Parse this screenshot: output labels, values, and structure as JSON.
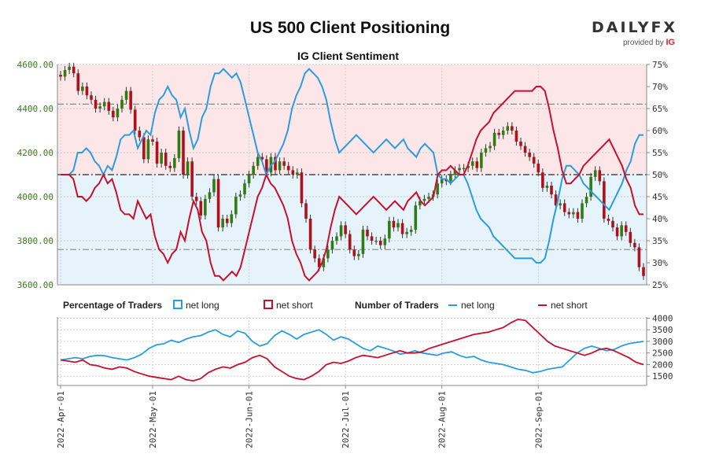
{
  "header": {
    "title": "US 500 Client Positioning",
    "subtitle": "IG Client Sentiment",
    "brand_name": "DAILYFX",
    "brand_sub": "provided by",
    "brand_ig": "IG"
  },
  "legend": {
    "pct_label": "Percentage of Traders",
    "num_label": "Number of Traders",
    "net_long": "net long",
    "net_short": "net short"
  },
  "colors": {
    "long": "#2a9de0",
    "short": "#c8102e",
    "bull": "#2e7d12",
    "bear": "#b0101a",
    "top_fill": "#fde6e8",
    "bottom_fill": "#e6f3fb"
  },
  "chart_data": [
    {
      "type": "candlestick",
      "title": "US 500 Client Positioning",
      "subtitle": "IG Client Sentiment",
      "y_left_ticks": [
        "4600.00",
        "4400.00",
        "4200.00",
        "4000.00",
        "3800.00",
        "3600.00"
      ],
      "y_left_lim": [
        3600,
        4600
      ],
      "y_right_ticks": [
        "75%",
        "70%",
        "65%",
        "60%",
        "55%",
        "50%",
        "45%",
        "40%",
        "35%",
        "30%",
        "25%"
      ],
      "y_right_lim": [
        25,
        75
      ],
      "reference_lines_price": [
        4420,
        4100,
        3760
      ],
      "closes": [
        4545,
        4575,
        4590,
        4560,
        4480,
        4500,
        4460,
        4440,
        4400,
        4410,
        4430,
        4390,
        4360,
        4400,
        4440,
        4480,
        4395,
        4300,
        4270,
        4170,
        4260,
        4250,
        4150,
        4200,
        4140,
        4130,
        4175,
        4300,
        4100,
        4160,
        4000,
        3980,
        3915,
        3990,
        4020,
        4080,
        3860,
        3900,
        3880,
        3920,
        4000,
        4010,
        4060,
        4100,
        4140,
        4180,
        4170,
        4110,
        4180,
        4120,
        4160,
        4140,
        4120,
        4100,
        4110,
        3970,
        3900,
        3760,
        3720,
        3680,
        3720,
        3760,
        3800,
        3820,
        3870,
        3830,
        3760,
        3730,
        3740,
        3850,
        3820,
        3800,
        3800,
        3780,
        3810,
        3890,
        3860,
        3880,
        3830,
        3840,
        3850,
        3960,
        3980,
        3990,
        4000,
        4010,
        4060,
        4080,
        4070,
        4100,
        4120,
        4130,
        4130,
        4140,
        4160,
        4130,
        4200,
        4220,
        4230,
        4290,
        4280,
        4300,
        4320,
        4300,
        4250,
        4230,
        4200,
        4180,
        4150,
        4110,
        4040,
        4050,
        4010,
        3960,
        3970,
        3930,
        3920,
        3930,
        3900,
        3970,
        4000,
        4090,
        4120,
        4070,
        3900,
        3890,
        3860,
        3820,
        3870,
        3840,
        3790,
        3770,
        3680,
        3640
      ],
      "net_long_pct_approx": [
        50,
        50,
        50,
        51,
        55,
        55,
        56,
        55,
        53,
        52,
        50,
        52,
        51,
        54,
        58,
        59,
        59,
        60,
        56,
        58,
        60,
        59,
        64,
        67,
        68,
        70,
        68,
        67,
        63,
        65,
        60,
        56,
        58,
        63,
        65,
        70,
        73,
        73,
        74,
        73,
        72,
        73,
        71,
        67,
        63,
        59,
        55,
        53,
        50,
        52,
        53,
        55,
        57,
        60,
        65,
        68,
        70,
        73,
        74,
        73,
        72,
        70,
        67,
        62,
        58,
        55,
        56,
        57,
        58,
        59,
        58,
        57,
        56,
        55,
        56,
        57,
        58,
        57,
        56,
        57,
        58,
        56,
        55,
        54,
        56,
        57,
        56,
        55,
        50,
        49,
        49,
        48,
        49,
        50,
        50,
        48,
        45,
        42,
        40,
        39,
        38,
        36,
        35,
        34,
        33,
        32,
        31,
        31,
        31,
        31,
        31,
        30,
        30,
        31,
        35,
        40,
        44,
        49,
        52,
        52,
        51,
        50,
        48,
        47,
        46,
        45,
        44,
        43,
        42,
        44,
        46,
        48,
        51,
        53,
        57,
        59,
        59
      ],
      "net_short_pct_approx": [
        50,
        50,
        50,
        49,
        45,
        45,
        44,
        45,
        47,
        48,
        50,
        48,
        49,
        46,
        42,
        41,
        41,
        40,
        44,
        42,
        40,
        41,
        36,
        33,
        32,
        30,
        32,
        33,
        37,
        35,
        40,
        44,
        42,
        37,
        35,
        30,
        27,
        27,
        26,
        27,
        28,
        27,
        29,
        33,
        37,
        41,
        45,
        47,
        50,
        48,
        47,
        45,
        43,
        40,
        35,
        32,
        30,
        27,
        26,
        27,
        28,
        30,
        33,
        38,
        42,
        45,
        44,
        43,
        42,
        41,
        42,
        43,
        44,
        45,
        44,
        43,
        42,
        43,
        44,
        43,
        42,
        44,
        45,
        46,
        44,
        43,
        44,
        45,
        50,
        51,
        51,
        52,
        51,
        50,
        50,
        52,
        55,
        58,
        60,
        61,
        62,
        64,
        65,
        66,
        67,
        68,
        69,
        69,
        69,
        69,
        69,
        70,
        70,
        69,
        65,
        60,
        56,
        51,
        48,
        48,
        49,
        50,
        52,
        53,
        54,
        55,
        56,
        57,
        58,
        56,
        54,
        52,
        49,
        47,
        43,
        41,
        41
      ]
    },
    {
      "type": "line",
      "title": "Number of Traders",
      "y_right_ticks": [
        "4000",
        "3500",
        "3000",
        "2500",
        "2000",
        "1500"
      ],
      "ylim": [
        1100,
        4050
      ],
      "x_tick_labels": [
        "2022-Apr-01",
        "2022-May-01",
        "2022-Jun-01",
        "2022-Jul-01",
        "2022-Aug-01",
        "2022-Sep-01"
      ],
      "series": [
        {
          "name": "net long",
          "values_approx": [
            2200,
            2250,
            2300,
            2250,
            2350,
            2400,
            2380,
            2300,
            2250,
            2200,
            2300,
            2450,
            2700,
            2850,
            2900,
            3050,
            2950,
            3100,
            3200,
            3250,
            3400,
            3500,
            3300,
            3200,
            3450,
            3350,
            3000,
            2800,
            2900,
            3250,
            3450,
            3300,
            3100,
            3300,
            3400,
            3500,
            3300,
            3050,
            3200,
            3100,
            2900,
            2700,
            2600,
            2800,
            2700,
            2600,
            2450,
            2500,
            2600,
            2500,
            2450,
            2400,
            2500,
            2550,
            2400,
            2300,
            2350,
            2200,
            2100,
            2050,
            2000,
            1900,
            1800,
            1750,
            1650,
            1700,
            1800,
            1850,
            1900,
            2200,
            2500,
            2700,
            2800,
            2700,
            2600,
            2650,
            2800,
            2900,
            2950,
            3000
          ]
        },
        {
          "name": "net short",
          "values_approx": [
            2200,
            2150,
            2100,
            2200,
            2000,
            1950,
            1850,
            1800,
            1900,
            1850,
            1700,
            1600,
            1500,
            1450,
            1400,
            1350,
            1500,
            1350,
            1300,
            1400,
            1650,
            1800,
            1900,
            1850,
            2000,
            2100,
            2300,
            2400,
            2250,
            1900,
            1700,
            1500,
            1400,
            1350,
            1500,
            1700,
            2000,
            2100,
            2050,
            2150,
            2300,
            2400,
            2350,
            2300,
            2400,
            2500,
            2600,
            2500,
            2500,
            2550,
            2700,
            2800,
            2900,
            3000,
            3100,
            3200,
            3300,
            3350,
            3400,
            3500,
            3600,
            3800,
            3950,
            3900,
            3600,
            3300,
            3000,
            2800,
            2700,
            2600,
            2500,
            2400,
            2500,
            2650,
            2700,
            2600,
            2450,
            2300,
            2100,
            2000
          ]
        }
      ]
    }
  ]
}
